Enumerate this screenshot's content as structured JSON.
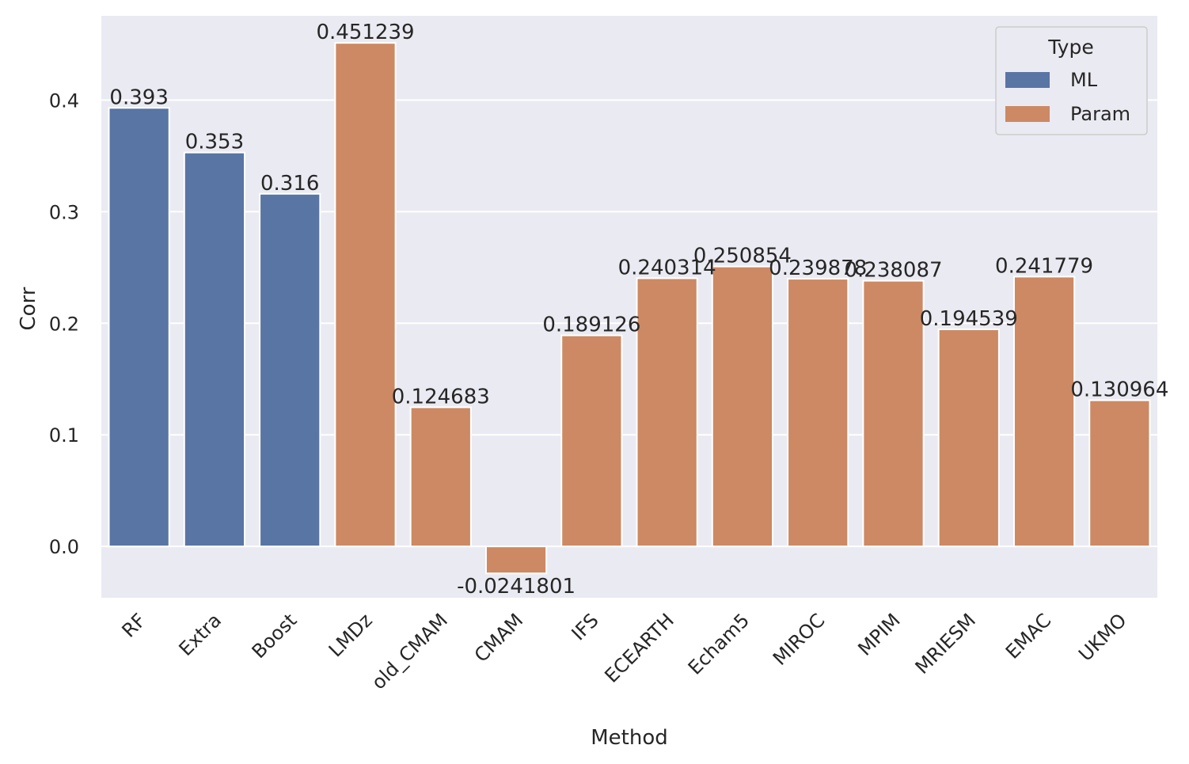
{
  "chart_data": {
    "type": "bar",
    "xlabel": "Method",
    "ylabel": "Corr",
    "ylim": [
      -0.046,
      0.4755
    ],
    "yticks": [
      0.0,
      0.1,
      0.2,
      0.3,
      0.4
    ],
    "ytick_labels": [
      "0.0",
      "0.1",
      "0.2",
      "0.3",
      "0.4"
    ],
    "grid": true,
    "legend": {
      "title": "Type",
      "placement": "top-right",
      "entries": [
        {
          "name": "ML",
          "color": "#5875a4"
        },
        {
          "name": "Param",
          "color": "#cc8963"
        }
      ]
    },
    "categories": [
      "RF",
      "Extra",
      "Boost",
      "LMDz",
      "old_CMAM",
      "CMAM",
      "IFS",
      "ECEARTH",
      "Echam5",
      "MIROC",
      "MPIM",
      "MRIESM",
      "EMAC",
      "UKMO"
    ],
    "types": [
      "ML",
      "ML",
      "ML",
      "Param",
      "Param",
      "Param",
      "Param",
      "Param",
      "Param",
      "Param",
      "Param",
      "Param",
      "Param",
      "Param"
    ],
    "values": [
      0.393,
      0.353,
      0.316,
      0.451239,
      0.124683,
      -0.0241801,
      0.189126,
      0.240314,
      0.250854,
      0.239878,
      0.238087,
      0.194539,
      0.241779,
      0.130964
    ],
    "value_labels": [
      "0.393",
      "0.353",
      "0.316",
      "0.451239",
      "0.124683",
      "-0.0241801",
      "0.189126",
      "0.240314",
      "0.250854",
      "0.239878",
      "0.238087",
      "0.194539",
      "0.241779",
      "0.130964"
    ]
  },
  "colors": {
    "background": "#eaeaf2",
    "grid": "#ffffff",
    "ML": "#5875a4",
    "Param": "#cc8963"
  }
}
